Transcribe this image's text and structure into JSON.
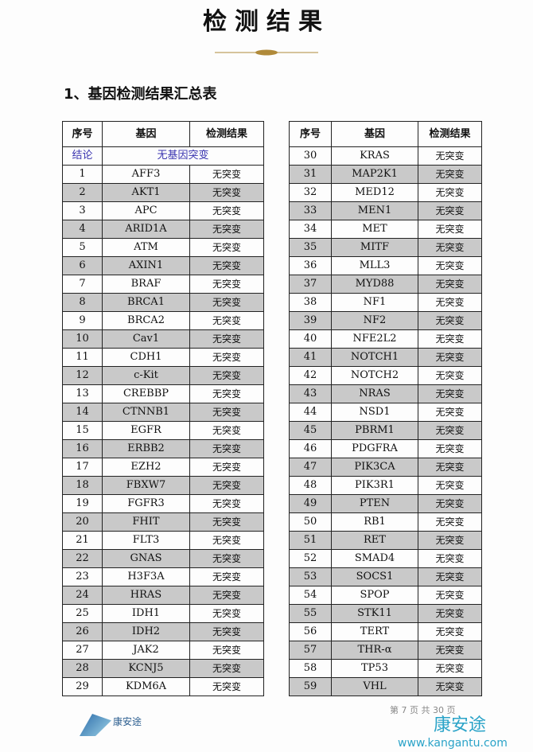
{
  "title": "检测结果",
  "section_title": "1、基因检测结果汇总表",
  "headers": [
    "序号",
    "基因",
    "检测结果"
  ],
  "conclusion": {
    "label": "结论",
    "value": "无基因突变"
  },
  "left_rows": [
    [
      "1",
      "AFF3",
      "无突变"
    ],
    [
      "2",
      "AKT1",
      "无突变"
    ],
    [
      "3",
      "APC",
      "无突变"
    ],
    [
      "4",
      "ARID1A",
      "无突变"
    ],
    [
      "5",
      "ATM",
      "无突变"
    ],
    [
      "6",
      "AXIN1",
      "无突变"
    ],
    [
      "7",
      "BRAF",
      "无突变"
    ],
    [
      "8",
      "BRCA1",
      "无突变"
    ],
    [
      "9",
      "BRCA2",
      "无突变"
    ],
    [
      "10",
      "Cav1",
      "无突变"
    ],
    [
      "11",
      "CDH1",
      "无突变"
    ],
    [
      "12",
      "c-Kit",
      "无突变"
    ],
    [
      "13",
      "CREBBP",
      "无突变"
    ],
    [
      "14",
      "CTNNB1",
      "无突变"
    ],
    [
      "15",
      "EGFR",
      "无突变"
    ],
    [
      "16",
      "ERBB2",
      "无突变"
    ],
    [
      "17",
      "EZH2",
      "无突变"
    ],
    [
      "18",
      "FBXW7",
      "无突变"
    ],
    [
      "19",
      "FGFR3",
      "无突变"
    ],
    [
      "20",
      "FHIT",
      "无突变"
    ],
    [
      "21",
      "FLT3",
      "无突变"
    ],
    [
      "22",
      "GNAS",
      "无突变"
    ],
    [
      "23",
      "H3F3A",
      "无突变"
    ],
    [
      "24",
      "HRAS",
      "无突变"
    ],
    [
      "25",
      "IDH1",
      "无突变"
    ],
    [
      "26",
      "IDH2",
      "无突变"
    ],
    [
      "27",
      "JAK2",
      "无突变"
    ],
    [
      "28",
      "KCNJ5",
      "无突变"
    ],
    [
      "29",
      "KDM6A",
      "无突变"
    ]
  ],
  "right_rows": [
    [
      "30",
      "KRAS",
      "无突变"
    ],
    [
      "31",
      "MAP2K1",
      "无突变"
    ],
    [
      "32",
      "MED12",
      "无突变"
    ],
    [
      "33",
      "MEN1",
      "无突变"
    ],
    [
      "34",
      "MET",
      "无突变"
    ],
    [
      "35",
      "MITF",
      "无突变"
    ],
    [
      "36",
      "MLL3",
      "无突变"
    ],
    [
      "37",
      "MYD88",
      "无突变"
    ],
    [
      "38",
      "NF1",
      "无突变"
    ],
    [
      "39",
      "NF2",
      "无突变"
    ],
    [
      "40",
      "NFE2L2",
      "无突变"
    ],
    [
      "41",
      "NOTCH1",
      "无突变"
    ],
    [
      "42",
      "NOTCH2",
      "无突变"
    ],
    [
      "43",
      "NRAS",
      "无突变"
    ],
    [
      "44",
      "NSD1",
      "无突变"
    ],
    [
      "45",
      "PBRM1",
      "无突变"
    ],
    [
      "46",
      "PDGFRA",
      "无突变"
    ],
    [
      "47",
      "PIK3CA",
      "无突变"
    ],
    [
      "48",
      "PIK3R1",
      "无突变"
    ],
    [
      "49",
      "PTEN",
      "无突变"
    ],
    [
      "50",
      "RB1",
      "无突变"
    ],
    [
      "51",
      "RET",
      "无突变"
    ],
    [
      "52",
      "SMAD4",
      "无突变"
    ],
    [
      "53",
      "SOCS1",
      "无突变"
    ],
    [
      "54",
      "SPOP",
      "无突变"
    ],
    [
      "55",
      "STK11",
      "无突变"
    ],
    [
      "56",
      "TERT",
      "无突变"
    ],
    [
      "57",
      "THR-α",
      "无突变"
    ],
    [
      "58",
      "TP53",
      "无突变"
    ],
    [
      "59",
      "VHL",
      "无突变"
    ]
  ],
  "page_number": "第 7 页 共 30 页",
  "footer": {
    "logo_text": "康安途",
    "watermark": "康安途",
    "watermark_url": "www.kangantu.com"
  }
}
